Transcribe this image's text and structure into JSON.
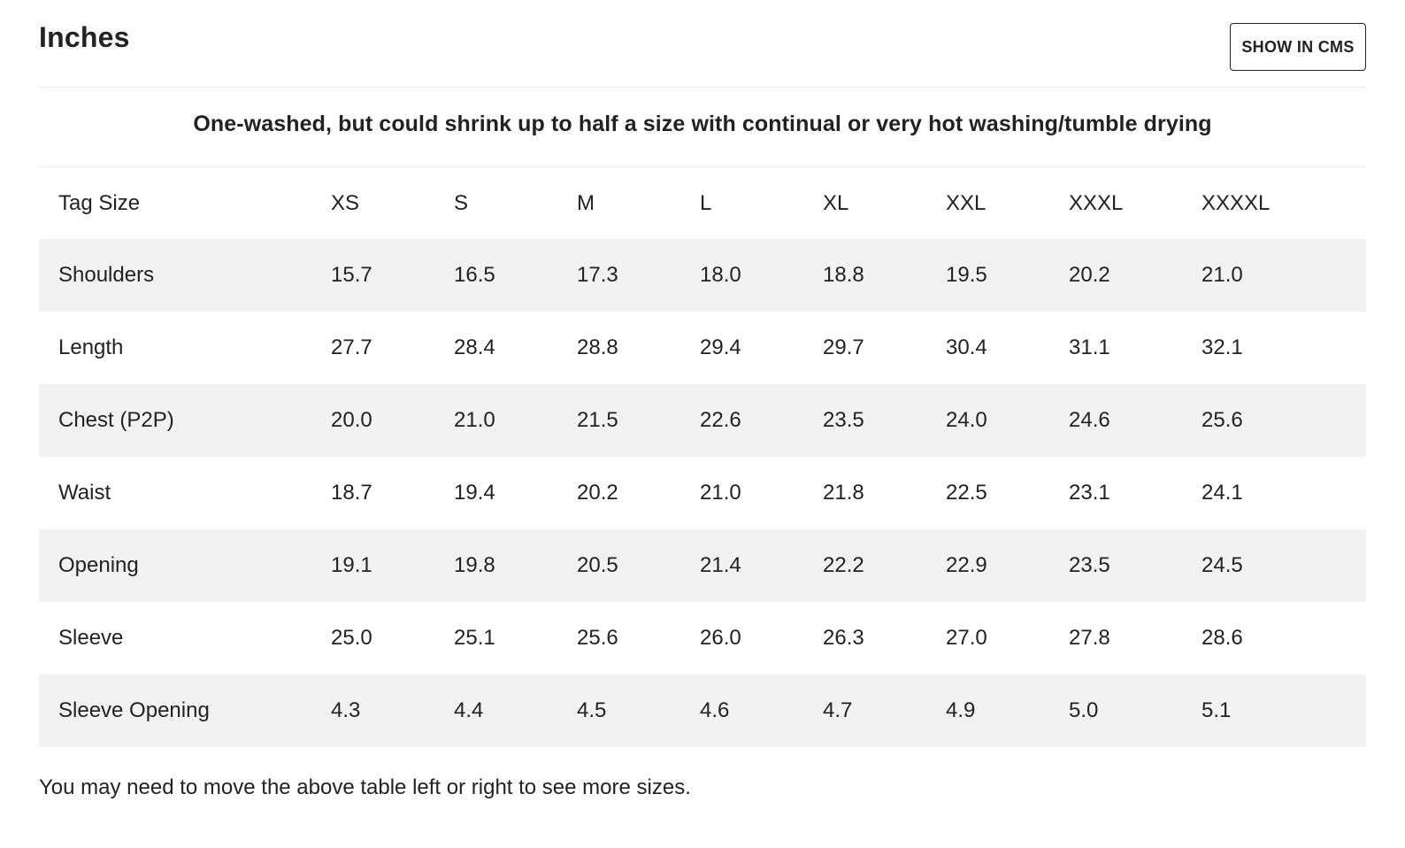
{
  "header": {
    "title": "Inches",
    "cms_button_label": "SHOW IN CMS"
  },
  "note": "One-washed, but could shrink up to half a size with continual or very hot washing/tumble drying",
  "table": {
    "columns": [
      "Tag Size",
      "XS",
      "S",
      "M",
      "L",
      "XL",
      "XXL",
      "XXXL",
      "XXXXL"
    ],
    "rows": [
      [
        "Shoulders",
        "15.7",
        "16.5",
        "17.3",
        "18.0",
        "18.8",
        "19.5",
        "20.2",
        "21.0"
      ],
      [
        "Length",
        "27.7",
        "28.4",
        "28.8",
        "29.4",
        "29.7",
        "30.4",
        "31.1",
        "32.1"
      ],
      [
        "Chest (P2P)",
        "20.0",
        "21.0",
        "21.5",
        "22.6",
        "23.5",
        "24.0",
        "24.6",
        "25.6"
      ],
      [
        "Waist",
        "18.7",
        "19.4",
        "20.2",
        "21.0",
        "21.8",
        "22.5",
        "23.1",
        "24.1"
      ],
      [
        "Opening",
        "19.1",
        "19.8",
        "20.5",
        "21.4",
        "22.2",
        "22.9",
        "23.5",
        "24.5"
      ],
      [
        "Sleeve",
        "25.0",
        "25.1",
        "25.6",
        "26.0",
        "26.3",
        "27.0",
        "27.8",
        "28.6"
      ],
      [
        "Sleeve Opening",
        "4.3",
        "4.4",
        "4.5",
        "4.6",
        "4.7",
        "4.9",
        "5.0",
        "5.1"
      ]
    ]
  },
  "footer_note": "You may need to move the above table left or right to see more sizes.",
  "colors": {
    "text": "#222222",
    "row_stripe": "#f2f2f2",
    "divider": "#ececec",
    "background": "#ffffff"
  }
}
